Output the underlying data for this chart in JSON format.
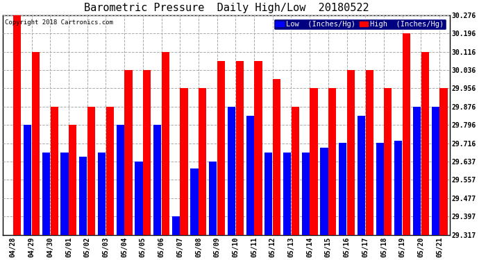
{
  "title": "Barometric Pressure  Daily High/Low  20180522",
  "copyright": "Copyright 2018 Cartronics.com",
  "legend_low": "Low  (Inches/Hg)",
  "legend_high": "High  (Inches/Hg)",
  "dates": [
    "04/28",
    "04/29",
    "04/30",
    "05/01",
    "05/02",
    "05/03",
    "05/04",
    "05/05",
    "05/06",
    "05/07",
    "05/08",
    "05/09",
    "05/10",
    "05/11",
    "05/12",
    "05/13",
    "05/14",
    "05/15",
    "05/16",
    "05/17",
    "05/18",
    "05/19",
    "05/20",
    "05/21"
  ],
  "low_values": [
    29.317,
    29.796,
    29.677,
    29.677,
    29.657,
    29.677,
    29.797,
    29.637,
    29.797,
    29.397,
    29.607,
    29.637,
    29.877,
    29.837,
    29.677,
    29.677,
    29.677,
    29.697,
    29.717,
    29.837,
    29.717,
    29.727,
    29.877,
    29.877
  ],
  "high_values": [
    30.276,
    30.116,
    29.876,
    29.796,
    29.876,
    29.876,
    30.036,
    30.036,
    30.116,
    29.956,
    29.956,
    30.076,
    30.076,
    30.076,
    29.996,
    29.876,
    29.956,
    29.956,
    30.036,
    30.036,
    29.956,
    30.196,
    30.116,
    29.956
  ],
  "ylim_min": 29.317,
  "ylim_max": 30.276,
  "yticks": [
    29.317,
    29.397,
    29.477,
    29.557,
    29.637,
    29.716,
    29.796,
    29.876,
    29.956,
    30.036,
    30.116,
    30.196,
    30.276
  ],
  "low_color": "#0000ff",
  "high_color": "#ff0000",
  "bg_color": "#ffffff",
  "grid_color": "#aaaaaa",
  "title_fontsize": 11,
  "tick_fontsize": 7,
  "legend_fontsize": 7.5,
  "legend_bg": "#000080"
}
